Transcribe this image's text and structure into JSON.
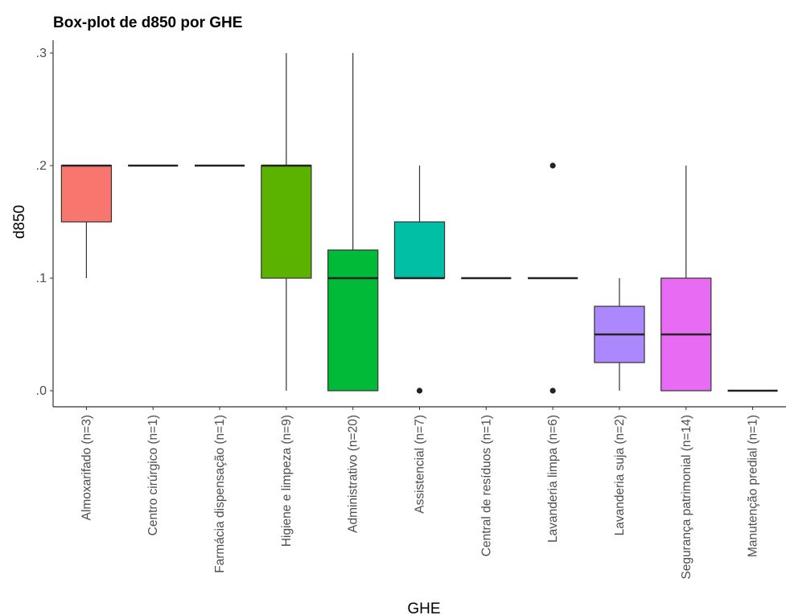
{
  "chart_data": {
    "type": "box",
    "title": "Box-plot de d850 por GHE",
    "xlabel": "GHE",
    "ylabel": "d850",
    "ylim": [
      -0.015,
      0.31
    ],
    "yticks": [
      0.0,
      0.1,
      0.2,
      0.3
    ],
    "ytick_labels": [
      ".0",
      ".1",
      ".2",
      ".3"
    ],
    "grid": false,
    "legend": "none",
    "categories": [
      "Almoxarifado (n=3)",
      "Centro cirúrgico (n=1)",
      "Farmácia dispensação (n=1)",
      "Higiene e limpeza (n=9)",
      "Administrativo (n=20)",
      "Assistencial (n=7)",
      "Central de resíduos (n=1)",
      "Lavanderia limpa (n=6)",
      "Lavanderia suja (n=2)",
      "Segurança patrimonial (n=14)",
      "Manutenção predial (n=1)"
    ],
    "boxes": [
      {
        "min": 0.1,
        "q1": 0.15,
        "median": 0.2,
        "q3": 0.2,
        "max": 0.2,
        "outliers": [],
        "color": "#F8766D"
      },
      {
        "min": 0.2,
        "q1": 0.2,
        "median": 0.2,
        "q3": 0.2,
        "max": 0.2,
        "outliers": [],
        "color": "#DB8E00"
      },
      {
        "min": 0.2,
        "q1": 0.2,
        "median": 0.2,
        "q3": 0.2,
        "max": 0.2,
        "outliers": [],
        "color": "#AEA200"
      },
      {
        "min": 0.0,
        "q1": 0.1,
        "median": 0.2,
        "q3": 0.2,
        "max": 0.3,
        "outliers": [],
        "color": "#5BB300"
      },
      {
        "min": 0.0,
        "q1": 0.0,
        "median": 0.1,
        "q3": 0.125,
        "max": 0.3,
        "outliers": [],
        "color": "#00BA38"
      },
      {
        "min": 0.1,
        "q1": 0.1,
        "median": 0.1,
        "q3": 0.15,
        "max": 0.2,
        "outliers": [
          0.0
        ],
        "color": "#00BFA4"
      },
      {
        "min": 0.1,
        "q1": 0.1,
        "median": 0.1,
        "q3": 0.1,
        "max": 0.1,
        "outliers": [],
        "color": "#00B4F0"
      },
      {
        "min": 0.1,
        "q1": 0.1,
        "median": 0.1,
        "q3": 0.1,
        "max": 0.1,
        "outliers": [
          0.2,
          0.0
        ],
        "color": "#00A5FF"
      },
      {
        "min": 0.0,
        "q1": 0.025,
        "median": 0.05,
        "q3": 0.075,
        "max": 0.1,
        "outliers": [],
        "color": "#AC88FF"
      },
      {
        "min": 0.0,
        "q1": 0.0,
        "median": 0.05,
        "q3": 0.1,
        "max": 0.2,
        "outliers": [],
        "color": "#E76BF3"
      },
      {
        "min": 0.0,
        "q1": 0.0,
        "median": 0.0,
        "q3": 0.0,
        "max": 0.0,
        "outliers": [],
        "color": "#FF62BC"
      }
    ]
  }
}
